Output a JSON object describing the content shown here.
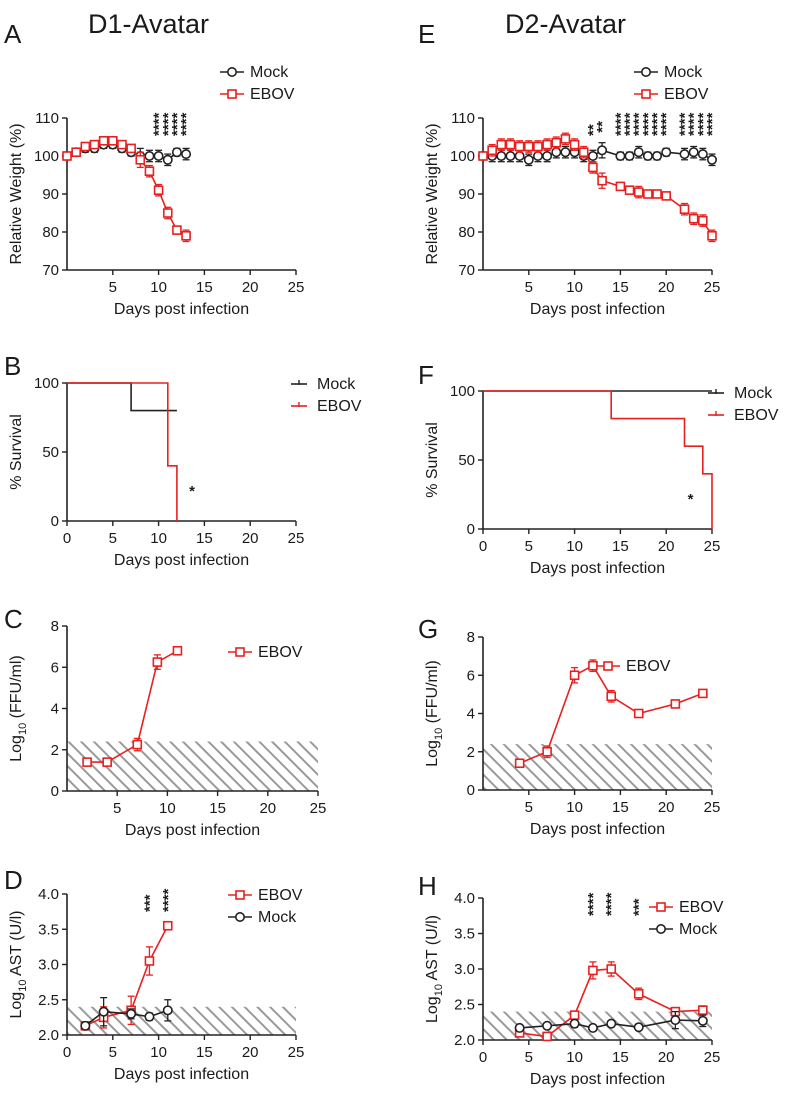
{
  "figure": {
    "group_titles": [
      "D1-Avatar",
      "D2-Avatar"
    ],
    "colors": {
      "mock": "#222222",
      "ebov": "#e8201f",
      "hatch": "#9a9a9a"
    }
  },
  "chart_data": [
    {
      "id": "A",
      "letter": "A",
      "type": "line",
      "ylabel": "Relative Weight (%)",
      "xlabel": "Days post infection",
      "xlim": [
        0,
        25
      ],
      "ylim": [
        70,
        110
      ],
      "xticks": [
        5,
        10,
        15,
        20,
        25
      ],
      "xtick_labels": [
        "5",
        "10",
        "15",
        "20",
        "25"
      ],
      "yticks": [
        70,
        80,
        90,
        100,
        110
      ],
      "ytick_labels": [
        "70",
        "80",
        "90",
        "100",
        "110"
      ],
      "legend": [
        "Mock",
        "EBOV"
      ],
      "series": [
        {
          "name": "Mock",
          "color": "mock",
          "marker": "circle",
          "x": [
            0,
            1,
            2,
            3,
            4,
            5,
            6,
            7,
            8,
            9,
            10,
            11,
            12,
            13
          ],
          "y": [
            100,
            101,
            102,
            102,
            103,
            103,
            102,
            101,
            100,
            100,
            100,
            99,
            101,
            100.5
          ],
          "err": [
            0.5,
            1,
            1,
            1,
            1,
            1,
            1,
            1,
            2,
            1.5,
            1.5,
            1.5,
            1,
            1.5
          ]
        },
        {
          "name": "EBOV",
          "color": "ebov",
          "marker": "square",
          "x": [
            0,
            1,
            2,
            3,
            4,
            5,
            6,
            7,
            8,
            9,
            10,
            11,
            12,
            13
          ],
          "y": [
            100,
            101,
            102.5,
            103,
            104,
            104,
            103,
            102,
            99,
            96,
            91,
            85,
            80.5,
            79
          ],
          "err": [
            0.5,
            1,
            1,
            1,
            1,
            1,
            1,
            1,
            2,
            1.5,
            1.5,
            1.5,
            1,
            1.5
          ]
        }
      ],
      "annotations": [
        {
          "x": 10,
          "text": "****"
        },
        {
          "x": 11,
          "text": "****"
        },
        {
          "x": 12,
          "text": "****"
        },
        {
          "x": 13,
          "text": "****"
        }
      ]
    },
    {
      "id": "E",
      "letter": "E",
      "type": "line",
      "ylabel": "Relative Weight (%)",
      "xlabel": "Days post infection",
      "xlim": [
        0,
        25
      ],
      "ylim": [
        70,
        110
      ],
      "xticks": [
        5,
        10,
        15,
        20,
        25
      ],
      "xtick_labels": [
        "5",
        "10",
        "15",
        "20",
        "25"
      ],
      "yticks": [
        70,
        80,
        90,
        100,
        110
      ],
      "ytick_labels": [
        "70",
        "80",
        "90",
        "100",
        "110"
      ],
      "legend": [
        "Mock",
        "EBOV"
      ],
      "series": [
        {
          "name": "Mock",
          "color": "mock",
          "marker": "circle",
          "x": [
            0,
            1,
            2,
            3,
            4,
            5,
            6,
            7,
            8,
            9,
            10,
            11,
            12,
            13,
            15,
            16,
            17,
            18,
            19,
            20,
            22,
            23,
            24,
            25
          ],
          "y": [
            100,
            100,
            100,
            100,
            100,
            99,
            100,
            100,
            101,
            101,
            101,
            100,
            100,
            101.5,
            100,
            100,
            101,
            100,
            100,
            101,
            100.5,
            101,
            100.5,
            99
          ],
          "err": [
            0.5,
            1.5,
            1.5,
            1.5,
            1.5,
            1.5,
            1.5,
            1.5,
            1.5,
            1.5,
            1.5,
            1.5,
            1.5,
            2,
            1,
            1,
            1.5,
            1,
            1,
            1,
            1.5,
            1.5,
            1.5,
            1.5
          ]
        },
        {
          "name": "EBOV",
          "color": "ebov",
          "marker": "square",
          "x": [
            0,
            1,
            2,
            3,
            4,
            5,
            6,
            7,
            8,
            9,
            10,
            11,
            12,
            13,
            15,
            16,
            17,
            18,
            19,
            20,
            22,
            23,
            24,
            25
          ],
          "y": [
            100,
            101.5,
            103,
            103,
            102.5,
            102.5,
            102.5,
            103,
            103.5,
            104.5,
            103,
            101,
            97,
            93.5,
            92,
            91,
            90.5,
            90,
            90,
            89.5,
            86,
            83.5,
            83,
            79
          ],
          "err": [
            0.5,
            1.5,
            1.5,
            1.5,
            1.5,
            1.5,
            1.5,
            1.5,
            1.5,
            1.5,
            1.5,
            1.5,
            1.5,
            2,
            1,
            1,
            1.5,
            1,
            1,
            1,
            1.5,
            1.5,
            1.5,
            1.5
          ]
        }
      ],
      "annotations": [
        {
          "x": 12,
          "text": "**"
        },
        {
          "x": 13,
          "text": "**"
        },
        {
          "x": 15,
          "text": "****"
        },
        {
          "x": 16,
          "text": "****"
        },
        {
          "x": 17,
          "text": "****"
        },
        {
          "x": 18,
          "text": "****"
        },
        {
          "x": 19,
          "text": "****"
        },
        {
          "x": 20,
          "text": "****"
        },
        {
          "x": 22,
          "text": "****"
        },
        {
          "x": 23,
          "text": "****"
        },
        {
          "x": 24,
          "text": "****"
        },
        {
          "x": 25,
          "text": "****"
        }
      ]
    },
    {
      "id": "B",
      "letter": "B",
      "type": "step",
      "ylabel": "% Survival",
      "xlabel": "Days post infection",
      "xlim": [
        0,
        25
      ],
      "ylim": [
        0,
        100
      ],
      "xticks": [
        0,
        5,
        10,
        15,
        20,
        25
      ],
      "xtick_labels": [
        "0",
        "5",
        "10",
        "15",
        "20",
        "25"
      ],
      "yticks": [
        0,
        50,
        100
      ],
      "ytick_labels": [
        "0",
        "50",
        "100"
      ],
      "legend": [
        "Mock",
        "EBOV"
      ],
      "series": [
        {
          "name": "Mock",
          "color": "mock",
          "x": [
            0,
            7,
            7,
            12
          ],
          "y": [
            100,
            100,
            80,
            80
          ]
        },
        {
          "name": "EBOV",
          "color": "ebov",
          "x": [
            0,
            11,
            11,
            12,
            12
          ],
          "y": [
            100,
            100,
            40,
            40,
            0
          ]
        }
      ],
      "annotations": [
        {
          "x": 13,
          "y": 18,
          "text": "*"
        }
      ]
    },
    {
      "id": "F",
      "letter": "F",
      "type": "step",
      "ylabel": "% Survival",
      "xlabel": "Days post infection",
      "xlim": [
        0,
        25
      ],
      "ylim": [
        0,
        100
      ],
      "xticks": [
        0,
        5,
        10,
        15,
        20,
        25
      ],
      "xtick_labels": [
        "0",
        "5",
        "10",
        "15",
        "20",
        "25"
      ],
      "yticks": [
        0,
        50,
        100
      ],
      "ytick_labels": [
        "0",
        "50",
        "100"
      ],
      "legend": [
        "Mock",
        "EBOV"
      ],
      "series": [
        {
          "name": "Mock",
          "color": "mock",
          "x": [
            0,
            25
          ],
          "y": [
            100,
            100
          ]
        },
        {
          "name": "EBOV",
          "color": "ebov",
          "x": [
            0,
            14,
            14,
            22,
            22,
            24,
            24,
            25,
            25
          ],
          "y": [
            100,
            100,
            80,
            80,
            60,
            60,
            40,
            40,
            0
          ]
        }
      ],
      "annotations": [
        {
          "x": 22,
          "y": 18,
          "text": "*"
        }
      ]
    },
    {
      "id": "C",
      "letter": "C",
      "type": "line",
      "ylabel": "Log10 (FFU/ml)",
      "xlabel": "Days post infection",
      "xlim": [
        0,
        25
      ],
      "ylim": [
        0,
        8
      ],
      "threshold": 2.4,
      "xticks": [
        5,
        10,
        15,
        20,
        25
      ],
      "xtick_labels": [
        "5",
        "10",
        "15",
        "20",
        "25"
      ],
      "yticks": [
        0,
        2,
        4,
        6,
        8
      ],
      "ytick_labels": [
        "0",
        "2",
        "4",
        "6",
        "8"
      ],
      "legend": [
        "EBOV"
      ],
      "series": [
        {
          "name": "EBOV",
          "color": "ebov",
          "marker": "square",
          "x": [
            2,
            4,
            7,
            9,
            11
          ],
          "y": [
            1.4,
            1.4,
            2.25,
            6.25,
            6.8
          ],
          "err": [
            0,
            0,
            0.3,
            0.35,
            0.1
          ]
        }
      ],
      "annotations": []
    },
    {
      "id": "G",
      "letter": "G",
      "type": "line",
      "ylabel": "Log10 (FFU/ml)",
      "xlabel": "Days post infection",
      "xlim": [
        0,
        25
      ],
      "ylim": [
        0,
        8
      ],
      "threshold": 2.4,
      "xticks": [
        5,
        10,
        15,
        20,
        25
      ],
      "xtick_labels": [
        "5",
        "10",
        "15",
        "20",
        "25"
      ],
      "yticks": [
        0,
        2,
        4,
        6,
        8
      ],
      "ytick_labels": [
        "0",
        "2",
        "4",
        "6",
        "8"
      ],
      "legend": [
        "EBOV"
      ],
      "series": [
        {
          "name": "EBOV",
          "color": "ebov",
          "marker": "square",
          "x": [
            4,
            7,
            10,
            12,
            14,
            17,
            21,
            24
          ],
          "y": [
            1.4,
            2.0,
            6.0,
            6.5,
            4.9,
            4.0,
            4.5,
            5.05
          ],
          "err": [
            0.1,
            0.3,
            0.4,
            0.3,
            0.3,
            0.1,
            0.1,
            0.1
          ]
        }
      ],
      "annotations": []
    },
    {
      "id": "D",
      "letter": "D",
      "type": "line",
      "ylabel": "Log10 AST (U/l)",
      "xlabel": "Days post infection",
      "xlim": [
        0,
        25
      ],
      "ylim": [
        2.0,
        4.0
      ],
      "threshold": 2.4,
      "xticks": [
        0,
        5,
        10,
        15,
        20,
        25
      ],
      "xtick_labels": [
        "0",
        "5",
        "10",
        "15",
        "20",
        "25"
      ],
      "yticks": [
        2.0,
        2.5,
        3.0,
        3.5,
        4.0
      ],
      "ytick_labels": [
        "2.0",
        "2.5",
        "3.0",
        "3.5",
        "4.0"
      ],
      "legend": [
        "EBOV",
        "Mock"
      ],
      "series": [
        {
          "name": "EBOV",
          "color": "ebov",
          "marker": "square",
          "x": [
            2,
            4,
            7,
            9,
            11
          ],
          "y": [
            2.13,
            2.25,
            2.35,
            3.05,
            3.55
          ],
          "err": [
            0.03,
            0.15,
            0.2,
            0.2,
            0.04
          ]
        },
        {
          "name": "Mock",
          "color": "mock",
          "marker": "circle",
          "x": [
            2,
            4,
            7,
            9,
            11
          ],
          "y": [
            2.13,
            2.33,
            2.3,
            2.26,
            2.35
          ],
          "err": [
            0.03,
            0.2,
            0.07,
            0.05,
            0.15
          ]
        }
      ],
      "annotations": [
        {
          "x": 9,
          "text": "***"
        },
        {
          "x": 11,
          "text": "****"
        }
      ]
    },
    {
      "id": "H",
      "letter": "H",
      "type": "line",
      "ylabel": "Log10 AST (U/l)",
      "xlabel": "Days post infection",
      "xlim": [
        0,
        25
      ],
      "ylim": [
        2.0,
        4.0
      ],
      "threshold": 2.4,
      "xticks": [
        0,
        5,
        10,
        15,
        20,
        25
      ],
      "xtick_labels": [
        "0",
        "5",
        "10",
        "15",
        "20",
        "25"
      ],
      "yticks": [
        2.0,
        2.5,
        3.0,
        3.5,
        4.0
      ],
      "ytick_labels": [
        "2.0",
        "2.5",
        "3.0",
        "3.5",
        "4.0"
      ],
      "legend": [
        "EBOV",
        "Mock"
      ],
      "series": [
        {
          "name": "EBOV",
          "color": "ebov",
          "marker": "square",
          "x": [
            4,
            7,
            10,
            12,
            14,
            17,
            21,
            24
          ],
          "y": [
            2.1,
            2.05,
            2.35,
            2.98,
            3.0,
            2.65,
            2.4,
            2.42
          ],
          "err": [
            0.03,
            0.02,
            0.05,
            0.12,
            0.1,
            0.08,
            0.04,
            0.06
          ]
        },
        {
          "name": "Mock",
          "color": "mock",
          "marker": "circle",
          "x": [
            4,
            7,
            10,
            12,
            14,
            17,
            21,
            24
          ],
          "y": [
            2.17,
            2.2,
            2.23,
            2.17,
            2.23,
            2.18,
            2.28,
            2.27
          ],
          "err": [
            0.03,
            0.03,
            0.05,
            0.03,
            0.04,
            0.03,
            0.12,
            0.08
          ]
        }
      ],
      "annotations": [
        {
          "x": 12,
          "text": "****"
        },
        {
          "x": 14,
          "text": "****"
        },
        {
          "x": 17,
          "text": "***"
        }
      ]
    }
  ]
}
